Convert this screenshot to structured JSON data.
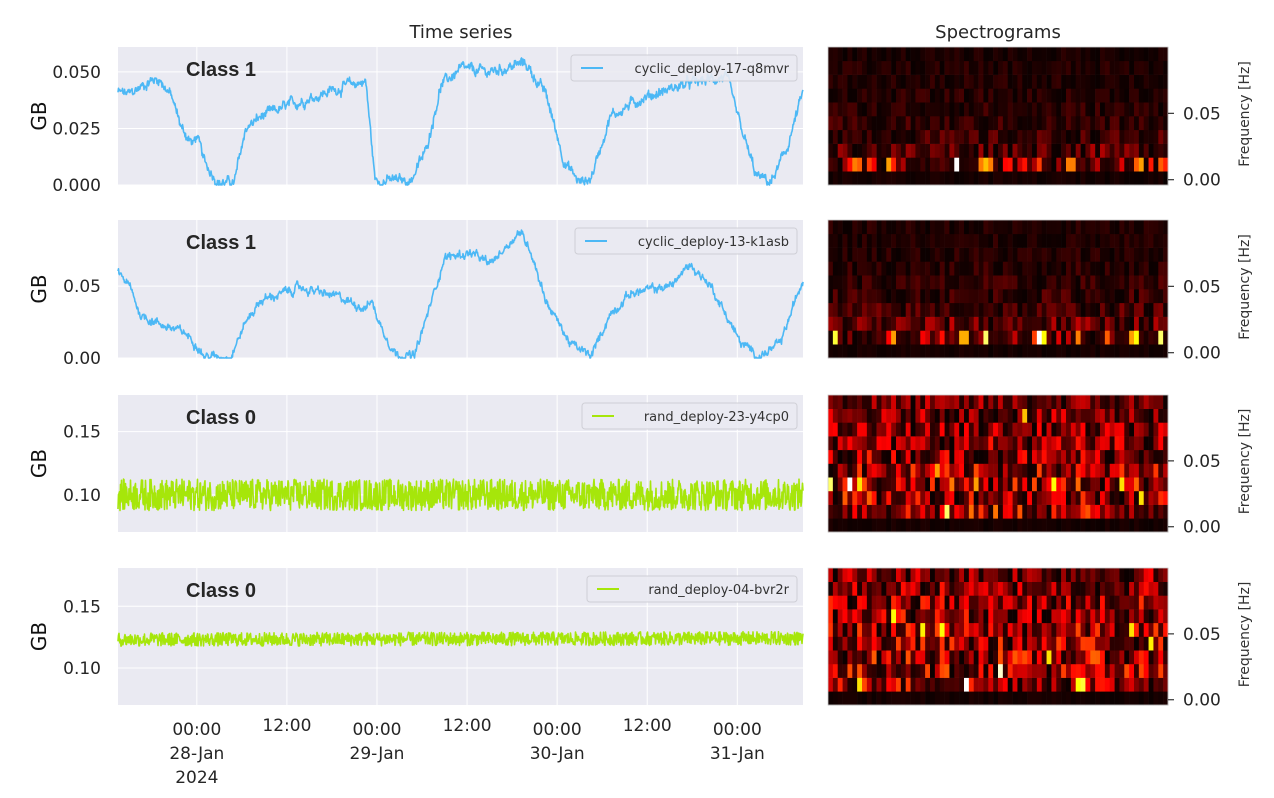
{
  "titles": {
    "time_series": "Time series",
    "spectrograms": "Spectrograms"
  },
  "x_axis": {
    "xlim": [
      "2024-01-27 13:30",
      "2024-01-31 08:45"
    ],
    "ticks": [
      {
        "t": "2024-01-28 00:00",
        "lines": [
          "00:00",
          "28-Jan",
          "2024"
        ]
      },
      {
        "t": "2024-01-28 12:00",
        "lines": [
          "12:00"
        ]
      },
      {
        "t": "2024-01-29 00:00",
        "lines": [
          "00:00",
          "29-Jan"
        ]
      },
      {
        "t": "2024-01-29 12:00",
        "lines": [
          "12:00"
        ]
      },
      {
        "t": "2024-01-30 00:00",
        "lines": [
          "00:00",
          "30-Jan"
        ]
      },
      {
        "t": "2024-01-30 12:00",
        "lines": [
          "12:00"
        ]
      },
      {
        "t": "2024-01-31 00:00",
        "lines": [
          "00:00",
          "31-Jan"
        ]
      }
    ]
  },
  "colors": {
    "cyclic": "#4cb8f5",
    "rand": "#a6e60a",
    "plot_bg": "#eaeaf2",
    "grid": "#ffffff"
  },
  "chart_data": [
    {
      "type": "line",
      "class_label": "Class 1",
      "series_name": "cyclic_deploy-17-q8mvr",
      "color_key": "cyclic",
      "ylabel": "GB",
      "ylim": [
        0,
        0.061
      ],
      "yticks": [
        0,
        0.025,
        0.05
      ],
      "ytick_labels": [
        "0.000",
        "0.025",
        "0.050"
      ],
      "grid": true,
      "legend": "top-right",
      "noise": 0.0022,
      "points": [
        [
          "2024-01-27 13:30",
          0.041
        ],
        [
          "2024-01-27 15:00",
          0.04
        ],
        [
          "2024-01-27 17:45",
          0.046
        ],
        [
          "2024-01-27 19:00",
          0.047
        ],
        [
          "2024-01-27 20:30",
          0.04
        ],
        [
          "2024-01-27 22:00",
          0.025
        ],
        [
          "2024-01-27 23:30",
          0.018
        ],
        [
          "2024-01-28 00:00",
          0.022
        ],
        [
          "2024-01-28 01:00",
          0.01
        ],
        [
          "2024-01-28 03:00",
          0.001
        ],
        [
          "2024-01-28 05:00",
          0.001
        ],
        [
          "2024-01-28 06:30",
          0.025
        ],
        [
          "2024-01-28 08:30",
          0.03
        ],
        [
          "2024-01-28 13:45",
          0.037
        ],
        [
          "2024-01-28 19:00",
          0.043
        ],
        [
          "2024-01-28 22:30",
          0.046
        ],
        [
          "2024-01-28 23:45",
          0.002
        ],
        [
          "2024-01-29 04:30",
          0.002
        ],
        [
          "2024-01-29 06:30",
          0.015
        ],
        [
          "2024-01-29 08:30",
          0.044
        ],
        [
          "2024-01-29 11:00",
          0.051
        ],
        [
          "2024-01-29 15:00",
          0.05
        ],
        [
          "2024-01-29 19:45",
          0.054
        ],
        [
          "2024-01-29 22:30",
          0.04
        ],
        [
          "2024-01-30 01:00",
          0.01
        ],
        [
          "2024-01-30 03:00",
          0.001
        ],
        [
          "2024-01-30 04:30",
          0.003
        ],
        [
          "2024-01-30 07:00",
          0.03
        ],
        [
          "2024-01-30 11:00",
          0.038
        ],
        [
          "2024-01-30 16:30",
          0.044
        ],
        [
          "2024-01-30 22:30",
          0.048
        ],
        [
          "2024-01-31 00:30",
          0.025
        ],
        [
          "2024-01-31 02:30",
          0.004
        ],
        [
          "2024-01-31 04:30",
          0.001
        ],
        [
          "2024-01-31 06:30",
          0.015
        ],
        [
          "2024-01-31 08:45",
          0.041
        ]
      ]
    },
    {
      "type": "line",
      "class_label": "Class 1",
      "series_name": "cyclic_deploy-13-k1asb",
      "color_key": "cyclic",
      "ylabel": "GB",
      "ylim": [
        0,
        0.096
      ],
      "yticks": [
        0,
        0.05
      ],
      "ytick_labels": [
        "0.00",
        "0.05"
      ],
      "grid": true,
      "legend": "top-right",
      "noise": 0.0028,
      "points": [
        [
          "2024-01-27 13:30",
          0.06
        ],
        [
          "2024-01-27 15:00",
          0.05
        ],
        [
          "2024-01-27 16:30",
          0.03
        ],
        [
          "2024-01-27 19:00",
          0.024
        ],
        [
          "2024-01-27 22:30",
          0.017
        ],
        [
          "2024-01-28 00:00",
          0.01
        ],
        [
          "2024-01-28 01:00",
          0.001
        ],
        [
          "2024-01-28 04:30",
          0.001
        ],
        [
          "2024-01-28 06:30",
          0.025
        ],
        [
          "2024-01-28 08:30",
          0.04
        ],
        [
          "2024-01-28 13:45",
          0.049
        ],
        [
          "2024-01-28 19:00",
          0.042
        ],
        [
          "2024-01-28 22:30",
          0.035
        ],
        [
          "2024-01-28 23:15",
          0.04
        ],
        [
          "2024-01-29 00:30",
          0.022
        ],
        [
          "2024-01-29 02:30",
          0.003
        ],
        [
          "2024-01-29 05:00",
          0.001
        ],
        [
          "2024-01-29 07:00",
          0.035
        ],
        [
          "2024-01-29 09:00",
          0.07
        ],
        [
          "2024-01-29 12:30",
          0.073
        ],
        [
          "2024-01-29 15:00",
          0.065
        ],
        [
          "2024-01-29 19:00",
          0.088
        ],
        [
          "2024-01-29 20:30",
          0.075
        ],
        [
          "2024-01-29 22:30",
          0.04
        ],
        [
          "2024-01-30 01:45",
          0.01
        ],
        [
          "2024-01-30 04:30",
          0.001
        ],
        [
          "2024-01-30 07:00",
          0.03
        ],
        [
          "2024-01-30 09:45",
          0.045
        ],
        [
          "2024-01-30 15:00",
          0.05
        ],
        [
          "2024-01-30 17:45",
          0.065
        ],
        [
          "2024-01-30 20:30",
          0.05
        ],
        [
          "2024-01-31 00:30",
          0.01
        ],
        [
          "2024-01-31 03:00",
          0.001
        ],
        [
          "2024-01-31 05:45",
          0.01
        ],
        [
          "2024-01-31 08:45",
          0.055
        ]
      ]
    },
    {
      "type": "line",
      "class_label": "Class 0",
      "series_name": "rand_deploy-23-y4cp0",
      "color_key": "rand",
      "ylabel": "GB",
      "ylim": [
        0.0706,
        0.179
      ],
      "yticks": [
        0.1,
        0.15
      ],
      "ytick_labels": [
        "0.10",
        "0.15"
      ],
      "grid": true,
      "legend": "top-right",
      "noise": 0.0125,
      "points": [
        [
          "2024-01-27 13:30",
          0.1
        ],
        [
          "2024-01-31 08:45",
          0.1
        ]
      ]
    },
    {
      "type": "line",
      "class_label": "Class 0",
      "series_name": "rand_deploy-04-bvr2r",
      "color_key": "rand",
      "ylabel": "GB",
      "ylim": [
        0.07,
        0.181
      ],
      "yticks": [
        0.1,
        0.15
      ],
      "ytick_labels": [
        "0.10",
        "0.15"
      ],
      "grid": true,
      "legend": "top-right",
      "noise": 0.0055,
      "points": [
        [
          "2024-01-27 13:30",
          0.123
        ],
        [
          "2024-01-31 08:45",
          0.124
        ]
      ]
    },
    {
      "type": "heatmap",
      "colormap": "hot",
      "ylabel": "Frequency [Hz]",
      "ylim": [
        -0.004,
        0.1
      ],
      "yticks": [
        0,
        0.05
      ],
      "ytick_labels": [
        "0.00",
        "0.05"
      ],
      "freq_bins": 10,
      "time_bins": 70,
      "row_levels": [
        0.03,
        0.28,
        0.14,
        0.09,
        0.07,
        0.06,
        0.05,
        0.04,
        0.04,
        0.03
      ],
      "hot_cells": [
        [
          5,
          1,
          0.55
        ],
        [
          6,
          1,
          0.5
        ],
        [
          8,
          1,
          0.45
        ],
        [
          12,
          1,
          0.6
        ],
        [
          26,
          1,
          1.0
        ],
        [
          31,
          1,
          0.55
        ],
        [
          32,
          1,
          0.65
        ],
        [
          33,
          1,
          0.55
        ],
        [
          43,
          1,
          0.45
        ],
        [
          49,
          1,
          0.55
        ],
        [
          50,
          1,
          0.55
        ],
        [
          63,
          1,
          0.5
        ],
        [
          64,
          1,
          0.6
        ],
        [
          68,
          1,
          0.5
        ]
      ]
    },
    {
      "type": "heatmap",
      "colormap": "hot",
      "ylabel": "Frequency [Hz]",
      "ylim": [
        -0.004,
        0.1
      ],
      "yticks": [
        0,
        0.05
      ],
      "ytick_labels": [
        "0.00",
        "0.05"
      ],
      "freq_bins": 10,
      "time_bins": 70,
      "row_levels": [
        0.03,
        0.3,
        0.16,
        0.1,
        0.08,
        0.07,
        0.06,
        0.05,
        0.04,
        0.04
      ],
      "hot_cells": [
        [
          1,
          1,
          0.8
        ],
        [
          13,
          1,
          0.6
        ],
        [
          27,
          1,
          0.62
        ],
        [
          28,
          1,
          0.62
        ],
        [
          32,
          1,
          0.85
        ],
        [
          43,
          1,
          1.0
        ],
        [
          44,
          1,
          0.75
        ],
        [
          51,
          1,
          0.55
        ],
        [
          57,
          1,
          0.5
        ],
        [
          62,
          1,
          0.6
        ],
        [
          63,
          1,
          0.75
        ],
        [
          68,
          1,
          0.85
        ]
      ]
    },
    {
      "type": "heatmap",
      "colormap": "hot",
      "ylabel": "Frequency [Hz]",
      "ylim": [
        -0.004,
        0.1
      ],
      "yticks": [
        0,
        0.05
      ],
      "ytick_labels": [
        "0.00",
        "0.05"
      ],
      "freq_bins": 10,
      "time_bins": 70,
      "row_levels": [
        0.03,
        0.32,
        0.3,
        0.32,
        0.28,
        0.26,
        0.24,
        0.22,
        0.2,
        0.18
      ],
      "hot_cells": [
        [
          0,
          3,
          0.85
        ],
        [
          4,
          3,
          1.0
        ],
        [
          6,
          3,
          0.7
        ],
        [
          24,
          1,
          0.85
        ],
        [
          46,
          3,
          0.75
        ],
        [
          40,
          8,
          0.65
        ],
        [
          22,
          4,
          0.6
        ],
        [
          30,
          3,
          0.6
        ],
        [
          60,
          3,
          0.7
        ],
        [
          64,
          2,
          0.7
        ]
      ]
    },
    {
      "type": "heatmap",
      "colormap": "hot",
      "ylabel": "Frequency [Hz]",
      "ylim": [
        -0.004,
        0.1
      ],
      "yticks": [
        0,
        0.05
      ],
      "ytick_labels": [
        "0.00",
        "0.05"
      ],
      "freq_bins": 10,
      "time_bins": 70,
      "row_levels": [
        0.03,
        0.3,
        0.3,
        0.3,
        0.28,
        0.28,
        0.27,
        0.26,
        0.24,
        0.22
      ],
      "hot_cells": [
        [
          28,
          1,
          1.0
        ],
        [
          35,
          2,
          0.95
        ],
        [
          6,
          1,
          0.7
        ],
        [
          23,
          5,
          0.75
        ],
        [
          13,
          6,
          0.75
        ],
        [
          45,
          3,
          0.7
        ],
        [
          51,
          1,
          0.75
        ],
        [
          52,
          1,
          0.8
        ],
        [
          19,
          5,
          0.72
        ],
        [
          62,
          5,
          0.7
        ],
        [
          66,
          4,
          0.72
        ]
      ]
    }
  ]
}
